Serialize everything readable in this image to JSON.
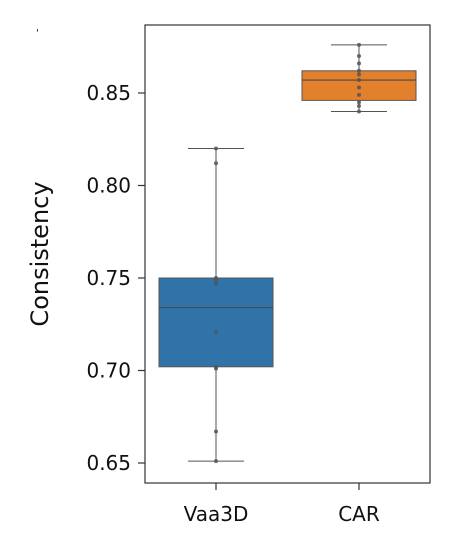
{
  "chart_data": {
    "type": "box",
    "title": "",
    "xlabel": "",
    "ylabel": "Consistency",
    "ylim": [
      0.64,
      0.88
    ],
    "yticks": [
      0.65,
      0.7,
      0.75,
      0.8,
      0.85
    ],
    "ytick_labels": [
      "0.65",
      "0.70",
      "0.75",
      "0.80",
      "0.85"
    ],
    "categories": [
      "Vaa3D",
      "CAR"
    ],
    "grid": false,
    "legend": "none",
    "series": [
      {
        "category": "Vaa3D",
        "color": "#2f73a8",
        "min": 0.651,
        "q1": 0.702,
        "median": 0.734,
        "q3": 0.75,
        "max": 0.82,
        "points": [
          0.651,
          0.667,
          0.701,
          0.702,
          0.721,
          0.747,
          0.749,
          0.75,
          0.812,
          0.82
        ]
      },
      {
        "category": "CAR",
        "color": "#e2802b",
        "min": 0.84,
        "q1": 0.846,
        "median": 0.857,
        "q3": 0.862,
        "max": 0.876,
        "points": [
          0.84,
          0.843,
          0.845,
          0.849,
          0.853,
          0.857,
          0.86,
          0.862,
          0.866,
          0.87,
          0.876
        ]
      }
    ]
  }
}
